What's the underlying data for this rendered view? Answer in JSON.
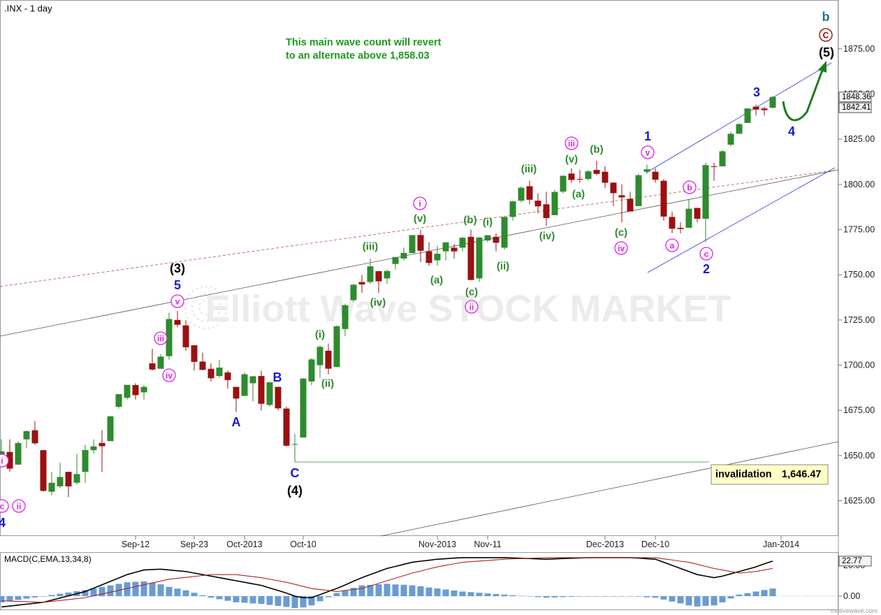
{
  "chart_data": [
    {
      "type": "candlestick",
      "title": ".INX - 1 day",
      "categories": [
        null,
        null,
        null,
        null,
        null,
        null,
        null,
        null,
        null,
        null,
        null,
        null,
        null,
        null,
        null,
        null,
        "Sep-12",
        null,
        null,
        null,
        null,
        null,
        null,
        "Sep-23",
        null,
        null,
        null,
        null,
        null,
        "Oct-2013",
        null,
        null,
        null,
        null,
        null,
        null,
        "Oct-10",
        null,
        null,
        null,
        null,
        null,
        null,
        null,
        null,
        null,
        null,
        null,
        null,
        null,
        null,
        null,
        "Nov-2013",
        null,
        null,
        null,
        null,
        null,
        "Nov-11",
        null,
        null,
        null,
        null,
        null,
        null,
        null,
        null,
        null,
        null,
        null,
        null,
        null,
        "Dec-2013",
        null,
        null,
        null,
        null,
        null,
        "Dec-10",
        null,
        null,
        null,
        null,
        null,
        null,
        null,
        null,
        null,
        null,
        null,
        null,
        null,
        null,
        "Jan-2014"
      ],
      "open": [
        1646,
        1652,
        1645,
        1659,
        1664,
        1653,
        1630,
        1633,
        1641,
        1635,
        1641,
        1653,
        1657,
        1658,
        1677,
        1682,
        1689,
        1685,
        1701,
        1698,
        1705,
        1725,
        1722,
        1711,
        1702,
        1698,
        1694,
        1696,
        1688,
        1683,
        1690,
        1694,
        1678,
        1688,
        1676,
        1656,
        1660,
        1691,
        1700,
        1708,
        1699,
        1720,
        1736,
        1746,
        1746,
        1752,
        1748,
        1756,
        1759,
        1762,
        1772,
        1763,
        1758,
        1763,
        1765,
        1765,
        1771,
        1748,
        1769,
        1771,
        1765,
        1782,
        1791,
        1799,
        1791,
        1789,
        1783,
        1796,
        1806,
        1803,
        1803,
        1808,
        1807,
        1801,
        1794,
        1792,
        1788,
        1807,
        1807,
        1802,
        1782,
        1776,
        1776,
        1787,
        1781,
        1810,
        1810,
        1822,
        1828,
        1834,
        1843,
        1842,
        1842.41,
        null
      ],
      "high": [
        1659,
        1659,
        1658,
        1664,
        1669,
        1653,
        1641,
        1646,
        1641,
        1651,
        1656,
        1659,
        1664,
        1672,
        1684,
        1689,
        1690,
        1689,
        1709,
        1706,
        1729,
        1730,
        1725,
        1711,
        1707,
        1701,
        1703,
        1697,
        1688,
        1696,
        1694,
        1697,
        1691,
        1688,
        1677,
        1662,
        1693,
        1704,
        1711,
        1712,
        1722,
        1734,
        1745,
        1750,
        1759,
        1752,
        1753,
        1760,
        1765,
        1772,
        1775,
        1768,
        1766,
        1768,
        1767,
        1771,
        1775,
        1771,
        1772,
        1773,
        1782,
        1791,
        1799,
        1802,
        1795,
        1796,
        1797,
        1805,
        1809,
        1808,
        1808,
        1813,
        1810,
        1801,
        1800,
        1796,
        1806,
        1811,
        1809,
        1803,
        1785,
        1779,
        1792,
        1787,
        1812,
        1812,
        1819,
        1829,
        1834,
        1842,
        1844,
        1843,
        1849,
        null
      ],
      "low": [
        1645,
        1641,
        1645,
        1654,
        1656,
        1630,
        1628,
        1632,
        1627,
        1634,
        1635,
        1651,
        1641,
        1658,
        1676,
        1681,
        1681,
        1681,
        1697,
        1698,
        1703,
        1721,
        1708,
        1697,
        1697,
        1691,
        1693,
        1687,
        1674,
        1683,
        1680,
        1675,
        1677,
        1675,
        1655,
        1646.47,
        1660,
        1689,
        1693,
        1695,
        1699,
        1716,
        1735,
        1740,
        1745,
        1740,
        1745,
        1753,
        1758,
        1762,
        1757,
        1755,
        1755,
        1758,
        1759,
        1763,
        1747,
        1746,
        1768,
        1763,
        1764,
        1780,
        1790,
        1789,
        1784,
        1777,
        1783,
        1795,
        1801,
        1801,
        1802,
        1805,
        1798,
        1788,
        1779,
        1785,
        1788,
        1806,
        1801,
        1780,
        1773,
        1773,
        1776,
        1779,
        1768,
        1802,
        1810,
        1821,
        1828,
        1834,
        1838,
        1838,
        1842,
        null
      ],
      "close": [
        1652.35,
        1642.8,
        1656.96,
        1663.5,
        1656.78,
        1630.48,
        1634.96,
        1638.17,
        1632.97,
        1639.77,
        1653.08,
        1655.08,
        1655.17,
        1671.71,
        1683.99,
        1689.13,
        1683.42,
        1687.99,
        1697.6,
        1704.76,
        1725.52,
        1722.34,
        1709.91,
        1701.84,
        1697.42,
        1692.77,
        1698.67,
        1691.75,
        1681.55,
        1695.0,
        1693.87,
        1678.66,
        1690.5,
        1676.12,
        1655.45,
        1656.4,
        1692.56,
        1703.2,
        1710.14,
        1698.06,
        1721.54,
        1733.15,
        1744.5,
        1744.66,
        1754.67,
        1746.38,
        1752.07,
        1759.77,
        1762.11,
        1771.95,
        1763.31,
        1756.54,
        1761.64,
        1767.93,
        1762.97,
        1770.49,
        1747.15,
        1770.61,
        1771.89,
        1767.69,
        1782.0,
        1790.62,
        1798.18,
        1791.53,
        1787.87,
        1781.37,
        1795.85,
        1804.76,
        1802.48,
        1802.75,
        1807.23,
        1805.81,
        1800.9,
        1795.15,
        1792.81,
        1785.03,
        1805.09,
        1808.37,
        1802.62,
        1782.22,
        1775.5,
        1775.32,
        1786.54,
        1781.0,
        1810.65,
        1809.6,
        1818.32,
        1827.99,
        1833.32,
        1842.02,
        1841.4,
        1841.07,
        1848.36,
        null
      ],
      "up_color": "#2e8b2e",
      "down_color": "#9b1010",
      "ylim": [
        1605.5,
        1902
      ],
      "yticks": [
        {
          "value": 1625,
          "label": "1625.00"
        },
        {
          "value": 1650,
          "label": "1650.00"
        },
        {
          "value": 1675,
          "label": "1675.00"
        },
        {
          "value": 1700,
          "label": "1700.00"
        },
        {
          "value": 1725,
          "label": "1725.00"
        },
        {
          "value": 1750,
          "label": "1750.00"
        },
        {
          "value": 1775,
          "label": "1775.00"
        },
        {
          "value": 1800,
          "label": "1800.00"
        },
        {
          "value": 1825,
          "label": "1825.00"
        },
        {
          "value": 1850,
          "label": "1850.00"
        },
        {
          "value": 1875,
          "label": "1875.00"
        }
      ],
      "notes": [
        "This main wave count will revert",
        "to an alternate above 1,858.03"
      ],
      "invalidation": {
        "text": "invalidation",
        "value": 1646.47,
        "label": "1,646.47",
        "color": "#2e8b2e"
      },
      "watermark": "Elliott Wave STOCK MARKET",
      "annotations": [
        {
          "text": "(3)",
          "color": "#000000",
          "circled": false
        },
        {
          "text": "5",
          "color": "#1a1ad0",
          "circled": false
        },
        {
          "text": "v",
          "color": "#e020e0",
          "circled": true
        },
        {
          "text": "iii",
          "color": "#e020e0",
          "circled": true
        },
        {
          "text": "iv",
          "color": "#e020e0",
          "circled": true
        },
        {
          "text": "i",
          "color": "#e020e0",
          "circled": true
        },
        {
          "text": "c",
          "color": "#e020e0",
          "circled": true
        },
        {
          "text": "ii",
          "color": "#e020e0",
          "circled": true
        },
        {
          "text": "4",
          "color": "#1a1ad0",
          "circled": false
        },
        {
          "text": "A",
          "color": "#1a1ad0",
          "circled": false
        },
        {
          "text": "B",
          "color": "#1a1ad0",
          "circled": false
        },
        {
          "text": "C",
          "color": "#1a1ad0",
          "circled": false
        },
        {
          "text": "(4)",
          "color": "#000000",
          "circled": false
        },
        {
          "text": "(i)",
          "color": "#2e8b2e",
          "circled": false
        },
        {
          "text": "(ii)",
          "color": "#2e8b2e",
          "circled": false
        },
        {
          "text": "(iii)",
          "color": "#2e8b2e",
          "circled": false
        },
        {
          "text": "(iv)",
          "color": "#2e8b2e",
          "circled": false
        },
        {
          "text": "i",
          "color": "#e020e0",
          "circled": true
        },
        {
          "text": "(v)",
          "color": "#2e8b2e",
          "circled": false
        },
        {
          "text": "(a)",
          "color": "#2e8b2e",
          "circled": false
        },
        {
          "text": "(b)",
          "color": "#2e8b2e",
          "circled": false
        },
        {
          "text": "(c)",
          "color": "#2e8b2e",
          "circled": false
        },
        {
          "text": "ii",
          "color": "#e020e0",
          "circled": true
        },
        {
          "text": "(i)",
          "color": "#2e8b2e",
          "circled": false
        },
        {
          "text": "(ii)",
          "color": "#2e8b2e",
          "circled": false
        },
        {
          "text": "(iii)",
          "color": "#2e8b2e",
          "circled": false
        },
        {
          "text": "(iv)",
          "color": "#2e8b2e",
          "circled": false
        },
        {
          "text": "iii",
          "color": "#e020e0",
          "circled": true
        },
        {
          "text": "(v)",
          "color": "#2e8b2e",
          "circled": false
        },
        {
          "text": "(a)",
          "color": "#2e8b2e",
          "circled": false
        },
        {
          "text": "(b)",
          "color": "#2e8b2e",
          "circled": false
        },
        {
          "text": "(c)",
          "color": "#2e8b2e",
          "circled": false
        },
        {
          "text": "iv",
          "color": "#e020e0",
          "circled": true
        },
        {
          "text": "1",
          "color": "#1a1ad0",
          "circled": false
        },
        {
          "text": "v",
          "color": "#e020e0",
          "circled": true
        },
        {
          "text": "a",
          "color": "#e020e0",
          "circled": true
        },
        {
          "text": "b",
          "color": "#e020e0",
          "circled": true
        },
        {
          "text": "c",
          "color": "#e020e0",
          "circled": true
        },
        {
          "text": "2",
          "color": "#1a1ad0",
          "circled": false
        },
        {
          "text": "3",
          "color": "#1a1ad0",
          "circled": false
        },
        {
          "text": "4",
          "color": "#1a1ad0",
          "circled": false
        },
        {
          "text": "(5)",
          "color": "#000000",
          "circled": false
        },
        {
          "text": "C",
          "color": "#8b0000",
          "circled": true
        },
        {
          "text": "b",
          "color": "#1a7a8a",
          "circled": false
        }
      ],
      "footer": "motivewave.com"
    },
    {
      "type": "macd",
      "title": "MACD(C,EMA,13,34,8)",
      "series": [
        {
          "color": "#000000",
          "values": [
            -7,
            -6.4,
            -5.8,
            -5.2,
            -4.6,
            -4,
            -2.6,
            -1.2,
            0.2,
            1.6,
            3,
            5.2,
            7.4,
            9.6,
            11.8,
            14,
            15.5,
            17,
            17.3,
            17.5,
            17,
            16.5,
            16,
            15,
            14,
            13,
            12,
            11,
            10,
            9,
            8,
            7,
            5.3,
            3.7,
            2,
            0,
            -1,
            -1,
            1,
            3,
            5,
            7.3,
            9.7,
            12,
            14,
            16,
            18,
            19.3,
            20.7,
            22,
            22.7,
            23.3,
            24,
            24.3,
            24.7,
            25,
            25,
            25,
            25,
            25,
            25,
            24.8,
            24.6,
            24.4,
            24.2,
            24,
            24.2,
            24.4,
            24.6,
            24.8,
            25,
            25,
            25,
            25,
            25,
            25,
            24.7,
            24.3,
            24,
            22,
            20,
            18,
            16,
            14,
            13,
            12,
            13,
            14.5,
            16,
            17.5,
            19,
            21,
            22.77,
            null
          ]
        },
        {
          "color": "#b22222",
          "values": [
            -3,
            -3.2,
            -3.4,
            -3.6,
            -3.8,
            -4,
            -3.4,
            -2.8,
            -2.2,
            -1.6,
            -1,
            0.2,
            1.4,
            2.6,
            3.8,
            5,
            6.2,
            7.4,
            8.6,
            9.8,
            11,
            11.6,
            12.2,
            12.8,
            13.4,
            14,
            14,
            14,
            14,
            13.3,
            12.7,
            12,
            11,
            10,
            9,
            7.7,
            6.3,
            5,
            4.3,
            3.7,
            3,
            3.7,
            4.3,
            5,
            6.7,
            8.3,
            10,
            11.7,
            13.3,
            15,
            16.3,
            17.7,
            19,
            20,
            21,
            22,
            22.4,
            22.8,
            23.2,
            23.6,
            24,
            24.2,
            24.4,
            24.6,
            24.8,
            25,
            25,
            25,
            25,
            25,
            25,
            25,
            25,
            25,
            25,
            25,
            25,
            25,
            25,
            24.2,
            23.5,
            22.7,
            22,
            20.7,
            19.3,
            18,
            17,
            16,
            15,
            15.5,
            16,
            17,
            18,
            null
          ]
        }
      ],
      "histogram": {
        "color": "#6a9bd2",
        "values": [
          -4,
          -3.2,
          -2.4,
          -1.6,
          -0.8,
          0,
          0.8,
          1.6,
          2.4,
          3.2,
          4,
          5,
          6,
          7,
          8,
          9,
          9.3,
          9.6,
          8.7,
          7.7,
          6,
          4.9,
          3.8,
          2.2,
          0.6,
          -1,
          -2,
          -3,
          -4,
          -4.3,
          -4.7,
          -5,
          -5.7,
          -6.3,
          -7,
          -7.7,
          -7.3,
          -6,
          -3.3,
          -0.7,
          2,
          3.6,
          5.4,
          7,
          7.3,
          7.7,
          8,
          7.6,
          7.4,
          7,
          6.4,
          5.6,
          5,
          4.3,
          3.7,
          3,
          2.6,
          2.2,
          1.8,
          1.4,
          1,
          0.6,
          0.2,
          -0.2,
          -0.6,
          -1,
          -0.8,
          -0.6,
          -0.4,
          -0.2,
          0,
          0,
          0,
          0,
          0,
          0,
          -0.3,
          -0.7,
          -1,
          -2.2,
          -3.5,
          -4.7,
          -6,
          -6.7,
          -6.3,
          -6,
          -4,
          -1.5,
          1,
          2,
          3,
          4,
          5,
          null
        ]
      },
      "ylim": [
        -8.6,
        28.6
      ],
      "yticks": [
        {
          "value": 0,
          "label": "0.00"
        },
        {
          "value": 20,
          "label": "20.00"
        }
      ]
    }
  ]
}
